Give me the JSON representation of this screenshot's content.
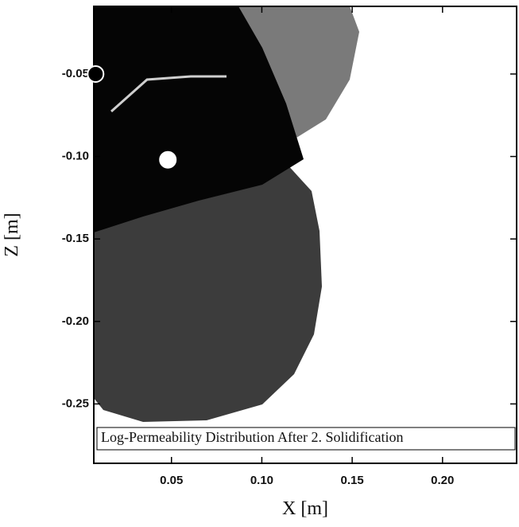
{
  "chart_data": {
    "type": "scatter",
    "annotation": "Log-Permeability Distribution After 2. Solidification",
    "x_label": "X [m]",
    "y_label": "Z [m]",
    "x": [
      0.008,
      0.048
    ],
    "values": [
      -0.05,
      -0.102
    ],
    "colors": [
      "#000000",
      "#ffffff"
    ],
    "xlim": [
      0.007,
      0.241
    ],
    "ylim": [
      -0.286,
      -0.009
    ],
    "xticks": [
      0.05,
      {
        "value": 0.1,
        "label": "0.10"
      },
      0.15,
      {
        "value": 0.2,
        "label": "0.20"
      }
    ],
    "yticks": [
      -0.05,
      {
        "value": -0.1,
        "label": "-0.10"
      },
      -0.15,
      {
        "value": -0.2,
        "label": "-0.20"
      },
      -0.25
    ]
  }
}
